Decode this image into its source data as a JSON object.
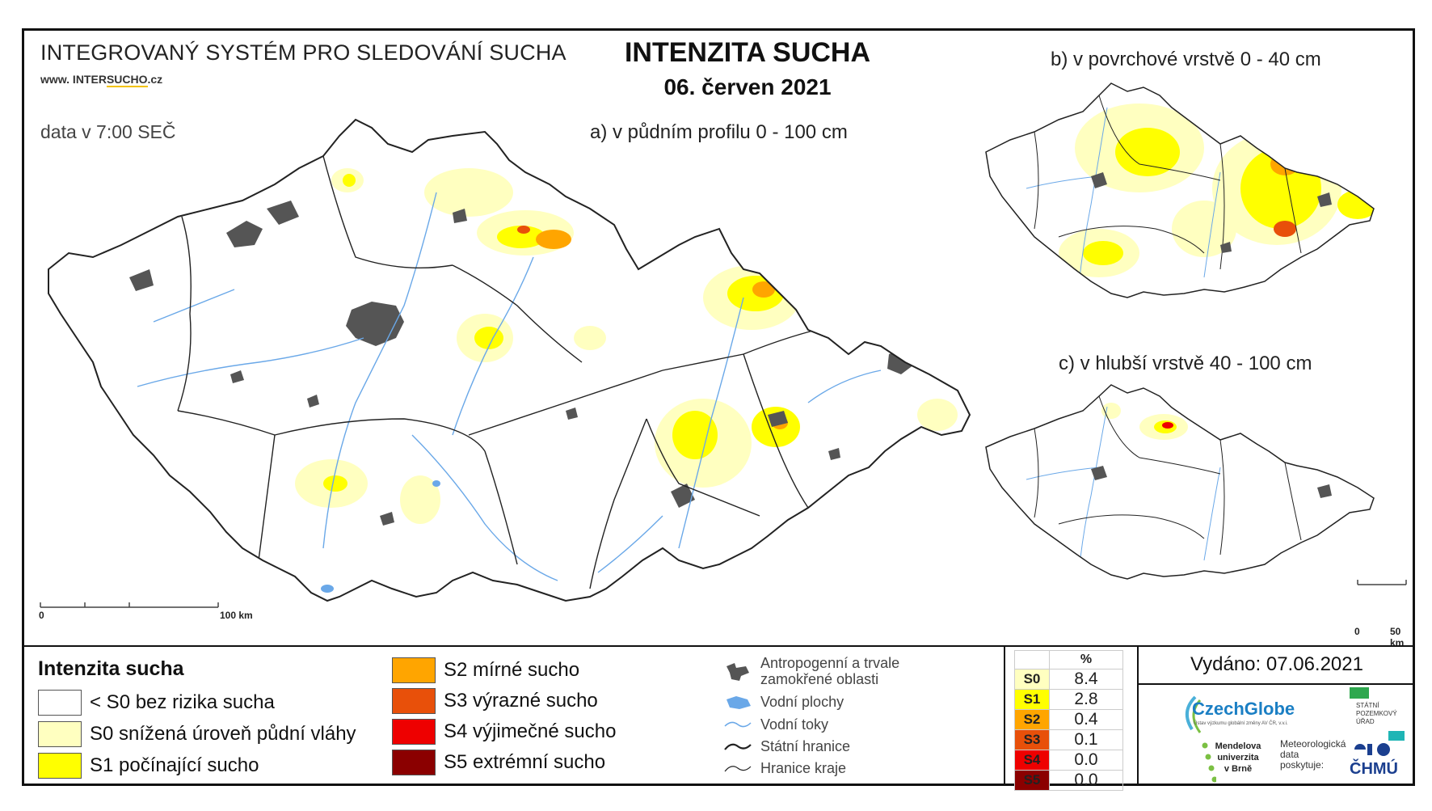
{
  "header": {
    "system_title": "INTEGROVANÝ SYSTÉM PRO SLEDOVÁNÍ SUCHA",
    "url_prefix": "www. INTER",
    "url_highlight": "SUCHO",
    "url_suffix": ".cz",
    "data_time": "data v 7:00 SEČ",
    "main_title": "INTENZITA SUCHA",
    "date": "06. červen 2021"
  },
  "maps": {
    "a_label": "a) v půdním profilu 0 - 100 cm",
    "b_label": "b) v povrchové vrstvě 0 - 40 cm",
    "c_label": "c) v hlubší vrstvě 40 - 100 cm",
    "scale_main_start": "0",
    "scale_main_end": "100 km",
    "scale_small_start": "0",
    "scale_small_end": "50 km"
  },
  "legend": {
    "title": "Intenzita sucha",
    "items": [
      {
        "label": "< S0 bez rizika sucha",
        "color": "#ffffff"
      },
      {
        "label": "S0 snížená úroveň půdní vláhy",
        "color": "#ffffc0"
      },
      {
        "label": "S1 počínající sucho",
        "color": "#ffff00"
      },
      {
        "label": "S2 mírné sucho",
        "color": "#ffa500"
      },
      {
        "label": "S3 výrazné sucho",
        "color": "#e8500a"
      },
      {
        "label": "S4 výjimečné sucho",
        "color": "#ee0000"
      },
      {
        "label": "S5 extrémní sucho",
        "color": "#8b0000"
      }
    ]
  },
  "symbols": {
    "anthropogenic": "Antropogenní a trvale zamokřené oblasti",
    "water_areas": "Vodní plochy",
    "water_streams": "Vodní toky",
    "state_border": "Státní hranice",
    "region_border": "Hranice kraje"
  },
  "percent_table": {
    "header": "%",
    "rows": [
      {
        "cls": "S0",
        "value": "8.4",
        "color": "#ffffc0"
      },
      {
        "cls": "S1",
        "value": "2.8",
        "color": "#ffff00"
      },
      {
        "cls": "S2",
        "value": "0.4",
        "color": "#ffa500"
      },
      {
        "cls": "S3",
        "value": "0.1",
        "color": "#e8500a"
      },
      {
        "cls": "S4",
        "value": "0.0",
        "color": "#ee0000"
      },
      {
        "cls": "S5",
        "value": "0.0",
        "color": "#8b0000"
      }
    ]
  },
  "issued": "Vydáno: 07.06.2021",
  "logos": {
    "czechglobe": "CzechGlobe",
    "czechglobe_sub": "Ústav výzkumu globální změny AV ČR, v.v.i.",
    "spu_line1": "STÁTNÍ",
    "spu_line2": "POZEMKOVÝ",
    "spu_line3": "ÚŘAD",
    "mendel_line1": "Mendelova",
    "mendel_line2": "univerzita",
    "mendel_line3": "v Brně",
    "meteo_line1": "Meteorologická",
    "meteo_line2": "data",
    "meteo_line3": "poskytuje:",
    "chmu": "ČHMÚ"
  }
}
